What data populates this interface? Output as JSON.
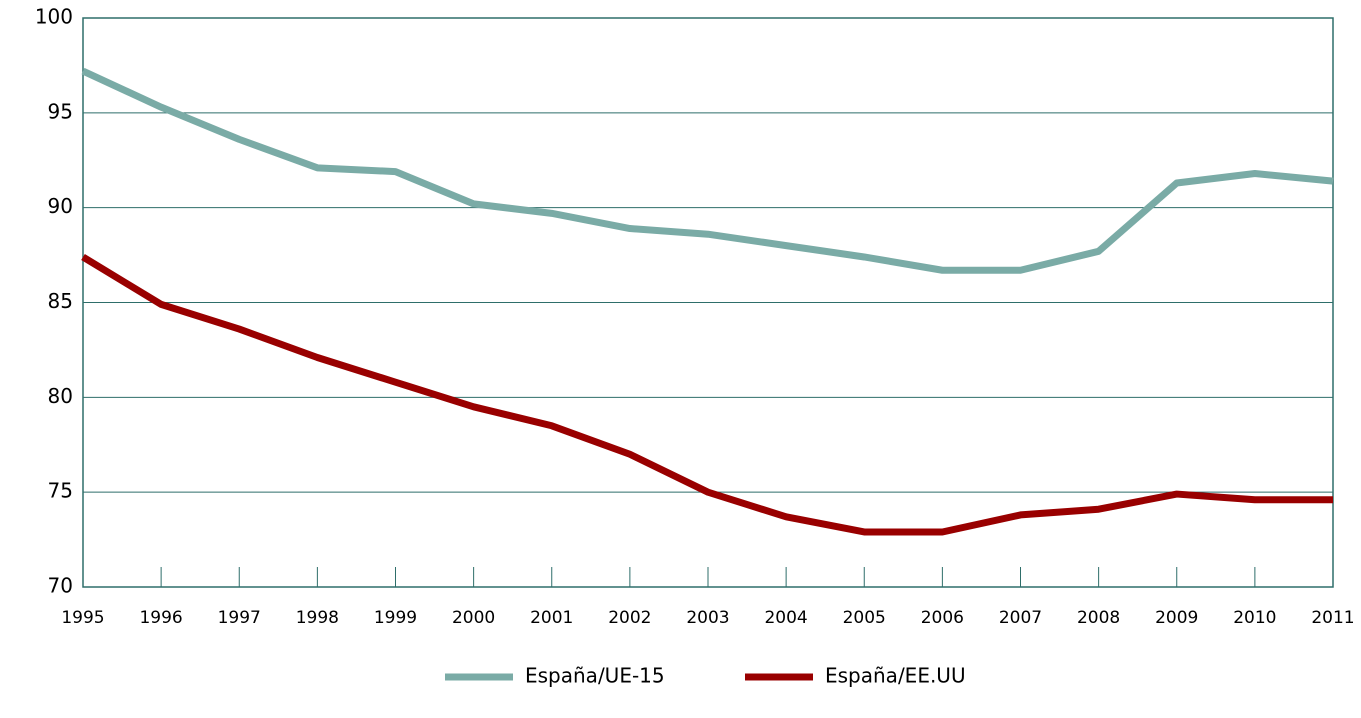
{
  "chart_data": {
    "type": "line",
    "x": [
      1995,
      1996,
      1997,
      1998,
      1999,
      2000,
      2001,
      2002,
      2003,
      2004,
      2005,
      2006,
      2007,
      2008,
      2009,
      2010,
      2011
    ],
    "xlim": [
      1995,
      2011
    ],
    "xticks": [
      1995,
      1996,
      1997,
      1998,
      1999,
      2000,
      2001,
      2002,
      2003,
      2004,
      2005,
      2006,
      2007,
      2008,
      2009,
      2010,
      2011
    ],
    "ylim": [
      70,
      100
    ],
    "yticks": [
      70,
      75,
      80,
      85,
      90,
      95,
      100
    ],
    "grid": true,
    "legend": "bottom",
    "series": [
      {
        "name": "España/UE-15",
        "color": "#7aaba6",
        "values": [
          97.2,
          95.3,
          93.6,
          92.1,
          91.9,
          90.2,
          89.7,
          88.9,
          88.6,
          88.0,
          87.4,
          86.7,
          86.7,
          87.7,
          91.3,
          91.8,
          91.4
        ]
      },
      {
        "name": "España/EE.UU",
        "color": "#990000",
        "values": [
          87.4,
          84.9,
          83.6,
          82.1,
          80.8,
          79.5,
          78.5,
          77.0,
          75.0,
          73.7,
          72.9,
          72.9,
          73.8,
          74.1,
          74.9,
          74.6,
          74.6
        ]
      }
    ]
  }
}
